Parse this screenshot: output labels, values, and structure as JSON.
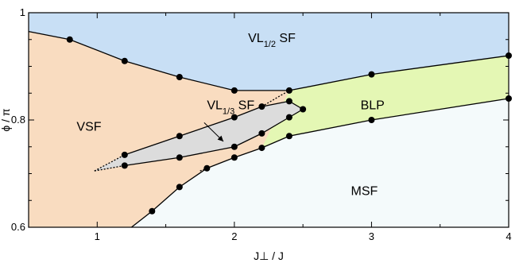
{
  "chart_data": {
    "type": "scatter",
    "title": "",
    "xlabel": "J⊥ / J",
    "ylabel": "ϕ / π",
    "xlim": [
      0.5,
      4
    ],
    "ylim": [
      0.6,
      1.0
    ],
    "xticks": [
      1,
      2,
      3,
      4
    ],
    "yticks": [
      0.6,
      0.8,
      1
    ],
    "ytick_labels": [
      "0.6",
      "0.8",
      "1"
    ],
    "grid": false,
    "region_colors": {
      "VL12SF": "#c8dff5",
      "VSF": "#f9dcc0",
      "VL13SF": "#dcdcdc",
      "BLP": "#e4f7b4",
      "MSF": "#f4fafb"
    },
    "regions": [
      {
        "id": "VL12SF",
        "label": "VL",
        "sub": "1/2",
        "suffix": " SF",
        "label_at": [
          2.1,
          0.945
        ]
      },
      {
        "id": "VSF",
        "label": "VSF",
        "sub": "",
        "suffix": "",
        "label_at": [
          0.85,
          0.78
        ]
      },
      {
        "id": "VL13SF",
        "label": "VL",
        "sub": "1/3",
        "suffix": " SF",
        "label_at": [
          1.8,
          0.82
        ]
      },
      {
        "id": "BLP",
        "label": "BLP",
        "sub": "",
        "suffix": "",
        "label_at": [
          2.92,
          0.82
        ]
      },
      {
        "id": "MSF",
        "label": "MSF",
        "sub": "",
        "suffix": "",
        "label_at": [
          2.85,
          0.66
        ]
      }
    ],
    "series": [
      {
        "id": "upper",
        "points": [
          [
            0.8,
            0.95
          ],
          [
            1.2,
            0.91
          ],
          [
            1.6,
            0.88
          ],
          [
            2.0,
            0.855
          ],
          [
            2.4,
            0.855
          ],
          [
            3.0,
            0.885
          ],
          [
            4.0,
            0.92
          ]
        ]
      },
      {
        "id": "lower",
        "points": [
          [
            1.4,
            0.63
          ],
          [
            1.6,
            0.675
          ],
          [
            1.8,
            0.71
          ],
          [
            2.0,
            0.73
          ],
          [
            2.2,
            0.748
          ],
          [
            2.4,
            0.77
          ],
          [
            3.0,
            0.8
          ],
          [
            4.0,
            0.84
          ]
        ]
      },
      {
        "id": "vl13_top",
        "points": [
          [
            1.2,
            0.735
          ],
          [
            1.6,
            0.77
          ],
          [
            2.0,
            0.805
          ],
          [
            2.2,
            0.825
          ],
          [
            2.4,
            0.835
          ]
        ]
      },
      {
        "id": "vl13_bottom",
        "points": [
          [
            1.2,
            0.715
          ],
          [
            1.6,
            0.73
          ],
          [
            2.0,
            0.75
          ],
          [
            2.2,
            0.775
          ],
          [
            2.4,
            0.805
          ],
          [
            2.5,
            0.82
          ]
        ]
      }
    ],
    "extrapolation_tip": [
      0.98,
      0.705
    ],
    "extra_points": [
      [
        2.4,
        0.855
      ]
    ]
  }
}
